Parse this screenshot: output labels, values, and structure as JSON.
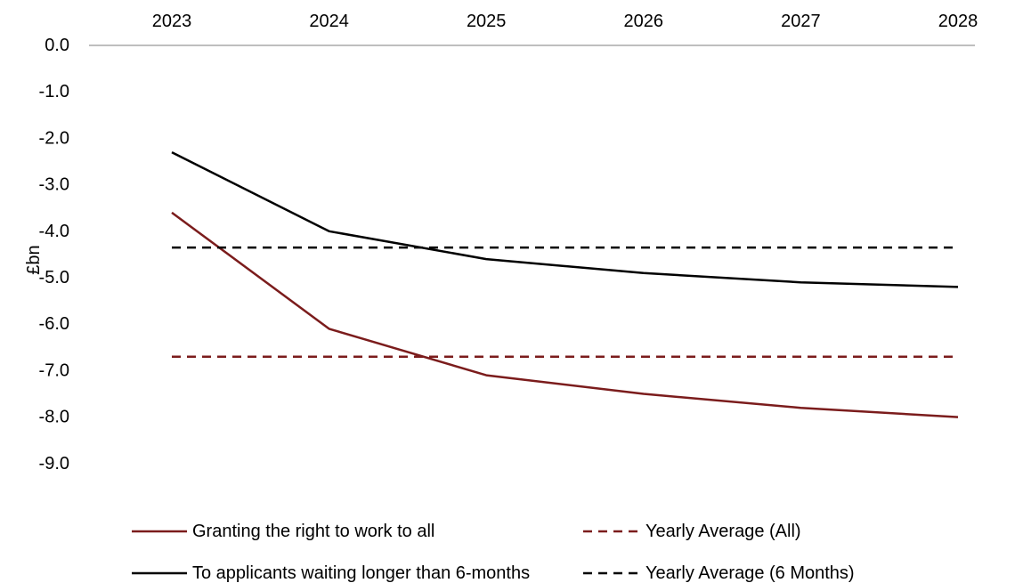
{
  "chart_data": {
    "type": "line",
    "title": "",
    "xlabel": "",
    "ylabel": "£bn",
    "x": [
      "2023",
      "2024",
      "2025",
      "2026",
      "2027",
      "2028"
    ],
    "ylim": [
      -9.0,
      0.0
    ],
    "yticks": [
      "0.0",
      "-1.0",
      "-2.0",
      "-3.0",
      "-4.0",
      "-5.0",
      "-6.0",
      "-7.0",
      "-8.0",
      "-9.0"
    ],
    "x_axis_position": "top",
    "grid": false,
    "legend_position": "bottom",
    "series": [
      {
        "name": "Granting the right to work to all",
        "style": "solid",
        "color": "#7b1c1c",
        "values": [
          -3.6,
          -6.1,
          -7.1,
          -7.5,
          -7.8,
          -8.0
        ]
      },
      {
        "name": "To applicants waiting longer than 6-months",
        "style": "solid",
        "color": "#000000",
        "values": [
          -2.3,
          -4.0,
          -4.6,
          -4.9,
          -5.1,
          -5.2
        ]
      },
      {
        "name": "Yearly Average (All)",
        "style": "dashed",
        "color": "#7b1c1c",
        "values": [
          -6.7,
          -6.7,
          -6.7,
          -6.7,
          -6.7,
          -6.7
        ]
      },
      {
        "name": "Yearly Average (6 Months)",
        "style": "dashed",
        "color": "#000000",
        "values": [
          -4.35,
          -4.35,
          -4.35,
          -4.35,
          -4.35,
          -4.35
        ]
      }
    ]
  }
}
